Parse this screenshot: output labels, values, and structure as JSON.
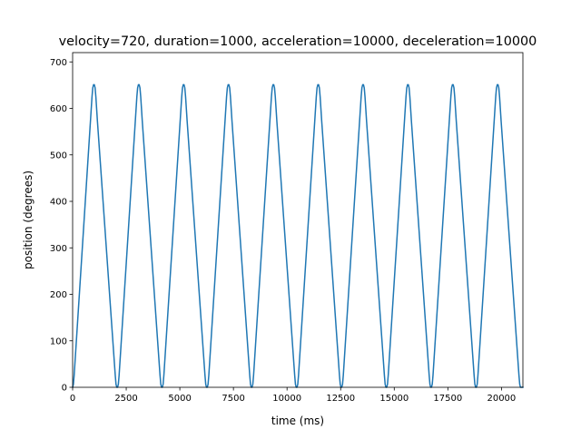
{
  "chart_data": {
    "type": "line",
    "title": "velocity=720, duration=1000, acceleration=10000, deceleration=10000",
    "xlabel": "time (ms)",
    "ylabel": "position (degrees)",
    "xlim": [
      0,
      21000
    ],
    "ylim": [
      0,
      720
    ],
    "x_ticks": [
      0,
      2500,
      5000,
      7500,
      10000,
      12500,
      15000,
      17500,
      20000
    ],
    "y_ticks": [
      0,
      100,
      200,
      300,
      400,
      500,
      600,
      700
    ],
    "grid": false,
    "legend": "none",
    "series": [
      {
        "color": "#1f77b4",
        "x": [
          0,
          36,
          72,
          904,
          940,
          976,
          1012,
          1048,
          1084,
          1120,
          1156,
          1988,
          2024,
          2060,
          2096,
          2132,
          2168,
          2996,
          3032,
          3068,
          3104,
          3140,
          3176,
          3212,
          3248,
          4076,
          4112,
          4148,
          4184,
          4220,
          4256,
          5088,
          5124,
          5160,
          5196,
          5232,
          5268,
          5304,
          5340,
          6172,
          6208,
          6244,
          6280,
          6316,
          6352,
          7180,
          7216,
          7252,
          7288,
          7324,
          7360,
          7396,
          7432,
          8260,
          8296,
          8332,
          8368,
          8404,
          8440,
          9272,
          9308,
          9344,
          9380,
          9416,
          9452,
          9488,
          9524,
          10356,
          10392,
          10428,
          10464,
          10500,
          10536,
          11364,
          11400,
          11436,
          11472,
          11508,
          11544,
          11580,
          11616,
          12444,
          12480,
          12516,
          12552,
          12588,
          12624,
          13456,
          13492,
          13528,
          13564,
          13600,
          13636,
          13672,
          13708,
          14540,
          14576,
          14612,
          14648,
          14684,
          14720,
          15548,
          15584,
          15620,
          15656,
          15692,
          15728,
          15764,
          15800,
          16628,
          16664,
          16700,
          16736,
          16772,
          16808,
          17640,
          17676,
          17712,
          17748,
          17784,
          17820,
          17856,
          17892,
          18724,
          18760,
          18796,
          18832,
          18868,
          18904,
          19732,
          19768,
          19804,
          19840,
          19876,
          19912,
          19948,
          19984,
          20816,
          20852,
          20888,
          20924,
          21000
        ],
        "y": [
          0,
          6.48,
          25.92,
          624.96,
          644.4,
          650.88,
          650.88,
          644.4,
          624.96,
          599.04,
          573.12,
          25.92,
          6.48,
          0,
          0,
          6.48,
          25.92,
          624.96,
          644.4,
          650.88,
          650.88,
          644.4,
          624.96,
          599.04,
          573.12,
          25.92,
          6.48,
          0,
          0,
          6.48,
          25.92,
          624.96,
          644.4,
          650.88,
          650.88,
          644.4,
          624.96,
          599.04,
          573.12,
          25.92,
          6.48,
          0,
          0,
          6.48,
          25.92,
          624.96,
          644.4,
          650.88,
          650.88,
          644.4,
          624.96,
          599.04,
          573.12,
          25.92,
          6.48,
          0,
          0,
          6.48,
          25.92,
          624.96,
          644.4,
          650.88,
          650.88,
          644.4,
          624.96,
          599.04,
          573.12,
          25.92,
          6.48,
          0,
          0,
          6.48,
          25.92,
          624.96,
          644.4,
          650.88,
          650.88,
          644.4,
          624.96,
          599.04,
          573.12,
          25.92,
          6.48,
          0,
          0,
          6.48,
          25.92,
          624.96,
          644.4,
          650.88,
          650.88,
          644.4,
          624.96,
          599.04,
          573.12,
          25.92,
          6.48,
          0,
          0,
          6.48,
          25.92,
          624.96,
          644.4,
          650.88,
          650.88,
          644.4,
          624.96,
          599.04,
          573.12,
          25.92,
          6.48,
          0,
          0,
          6.48,
          25.92,
          624.96,
          644.4,
          650.88,
          650.88,
          644.4,
          624.96,
          599.04,
          573.12,
          25.92,
          6.48,
          0,
          0,
          6.48,
          25.92,
          624.96,
          644.4,
          650.88,
          650.88,
          644.4,
          624.96,
          599.04,
          573.12,
          25.92,
          6.48,
          0,
          0,
          0
        ]
      }
    ]
  }
}
